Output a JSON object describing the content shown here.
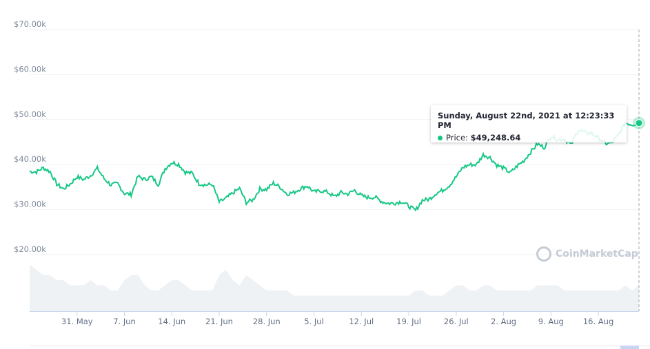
{
  "chart_data": {
    "type": "line",
    "title": "",
    "xlabel": "",
    "ylabel": "",
    "ylim": [
      15000,
      70000
    ],
    "y_ticks": [
      "$70.00k",
      "$60.00k",
      "$50.00k",
      "$40.00k",
      "$30.00k",
      "$20.00k"
    ],
    "y_tick_values": [
      70000,
      60000,
      50000,
      40000,
      30000,
      20000
    ],
    "x_ticks": [
      "31. May",
      "7. Jun",
      "14. Jun",
      "21. Jun",
      "28. Jun",
      "5. Jul",
      "12. Jul",
      "19. Jul",
      "26. Jul",
      "2. Aug",
      "9. Aug",
      "16. Aug"
    ],
    "x_tick_days": [
      7,
      14,
      21,
      28,
      35,
      42,
      49,
      56,
      63,
      70,
      77,
      84
    ],
    "start_date": "2021-05-24",
    "series": [
      {
        "name": "Price",
        "color": "#16c784",
        "values": [
          38.5,
          38.4,
          39.3,
          38.5,
          35.7,
          34.6,
          35.7,
          37.3,
          36.7,
          37.6,
          39.2,
          36.9,
          35.5,
          35.8,
          33.6,
          33.4,
          37.4,
          36.7,
          37.3,
          35.6,
          39.1,
          40.5,
          40.1,
          38.3,
          38.1,
          35.8,
          35.5,
          35.6,
          31.7,
          32.5,
          33.7,
          34.7,
          31.6,
          32.2,
          34.6,
          34.5,
          35.9,
          35.0,
          33.5,
          33.8,
          34.7,
          35.3,
          33.9,
          34.2,
          33.9,
          32.9,
          33.8,
          33.5,
          34.3,
          33.1,
          32.7,
          32.8,
          31.8,
          31.4,
          31.5,
          31.8,
          30.8,
          29.8,
          32.1,
          32.3,
          33.6,
          34.3,
          35.4,
          37.3,
          39.4,
          40.0,
          40.0,
          42.2,
          41.6,
          39.9,
          39.2,
          38.2,
          39.7,
          40.9,
          42.8,
          44.6,
          43.8,
          46.3,
          45.6,
          45.6,
          44.4,
          47.8,
          47.1,
          47.0,
          45.9,
          44.7,
          44.8,
          46.7,
          49.3,
          48.9,
          49.25
        ]
      },
      {
        "name": "Volume",
        "color": "#eff2f5",
        "values": [
          9,
          8,
          7,
          7,
          6,
          6,
          5,
          5,
          5,
          6,
          5,
          5,
          4,
          4,
          6,
          7,
          7,
          5,
          4,
          4,
          5,
          6,
          6,
          5,
          4,
          4,
          4,
          4,
          7,
          8,
          6,
          5,
          7,
          6,
          5,
          4,
          4,
          4,
          4,
          3,
          3,
          3,
          3,
          3,
          3,
          3,
          3,
          3,
          3,
          3,
          3,
          3,
          3,
          3,
          3,
          3,
          3,
          4,
          4,
          3,
          3,
          3,
          4,
          5,
          5,
          4,
          4,
          5,
          5,
          4,
          4,
          4,
          4,
          4,
          4,
          5,
          5,
          5,
          5,
          4,
          4,
          4,
          4,
          4,
          4,
          4,
          4,
          4,
          5,
          4,
          5
        ]
      }
    ],
    "tooltip": {
      "date": "Sunday, August 22nd, 2021 at 12:23:33 PM",
      "label": "Price:",
      "value": "$49,248.64"
    },
    "watermark": "CoinMarketCap",
    "grid": true,
    "legend": "none"
  }
}
